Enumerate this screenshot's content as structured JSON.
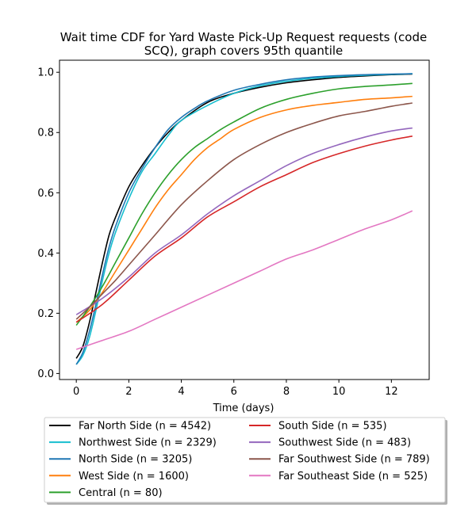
{
  "chart_data": {
    "type": "line",
    "title": [
      "Wait time CDF for Yard Waste Pick-Up Request  requests (code",
      "SCQ), graph covers 95th quantile"
    ],
    "xlabel": "Time (days)",
    "ylabel": "",
    "xlim": [
      -0.64,
      13.44
    ],
    "ylim": [
      -0.02,
      1.04
    ],
    "xticks": [
      0,
      2,
      4,
      6,
      8,
      10,
      12
    ],
    "yticks": [
      0.0,
      0.2,
      0.4,
      0.6,
      0.8,
      1.0
    ],
    "grid": false,
    "legend_placement": "below",
    "series": [
      {
        "name": "Far North Side (n = 4542)",
        "color": "#000000",
        "x": [
          0,
          0.25,
          0.5,
          0.75,
          1,
          1.25,
          1.5,
          2,
          2.5,
          3,
          3.5,
          4,
          5,
          6,
          7,
          8,
          9,
          10,
          11,
          12,
          12.8
        ],
        "y": [
          0.05,
          0.09,
          0.17,
          0.27,
          0.37,
          0.46,
          0.52,
          0.62,
          0.69,
          0.75,
          0.8,
          0.84,
          0.9,
          0.93,
          0.95,
          0.965,
          0.975,
          0.983,
          0.988,
          0.992,
          0.994
        ]
      },
      {
        "name": "Northwest Side (n = 2329)",
        "color": "#17becf",
        "x": [
          0,
          0.25,
          0.5,
          0.75,
          1,
          1.25,
          1.5,
          2,
          2.5,
          3,
          3.5,
          4,
          5,
          6,
          7,
          8,
          9,
          10,
          11,
          12,
          12.8
        ],
        "y": [
          0.03,
          0.06,
          0.12,
          0.21,
          0.31,
          0.4,
          0.47,
          0.58,
          0.67,
          0.73,
          0.79,
          0.84,
          0.89,
          0.93,
          0.955,
          0.97,
          0.98,
          0.986,
          0.99,
          0.993,
          0.995
        ]
      },
      {
        "name": "North Side (n = 3205)",
        "color": "#1f77b4",
        "x": [
          0,
          0.25,
          0.5,
          0.75,
          1,
          1.25,
          1.5,
          2,
          2.5,
          3,
          3.5,
          4,
          4.5,
          5,
          6,
          7,
          8,
          9,
          10,
          11,
          12,
          12.8
        ],
        "y": [
          0.03,
          0.07,
          0.14,
          0.23,
          0.33,
          0.42,
          0.49,
          0.6,
          0.68,
          0.75,
          0.81,
          0.85,
          0.88,
          0.905,
          0.94,
          0.96,
          0.975,
          0.984,
          0.989,
          0.992,
          0.994,
          0.995
        ]
      },
      {
        "name": "West Side (n = 1600)",
        "color": "#ff7f0e",
        "x": [
          0,
          0.5,
          1,
          1.5,
          2,
          2.5,
          3,
          3.5,
          4,
          4.5,
          5,
          5.5,
          6,
          7,
          8,
          9,
          10,
          11,
          12,
          12.8
        ],
        "y": [
          0.17,
          0.21,
          0.27,
          0.34,
          0.41,
          0.48,
          0.55,
          0.61,
          0.66,
          0.71,
          0.75,
          0.78,
          0.81,
          0.85,
          0.875,
          0.89,
          0.9,
          0.91,
          0.915,
          0.92
        ]
      },
      {
        "name": "Central (n = 80)",
        "color": "#2ca02c",
        "x": [
          0,
          0.5,
          1,
          1.5,
          2,
          2.5,
          3,
          3.5,
          4,
          4.5,
          5,
          5.5,
          6,
          7,
          8,
          9,
          10,
          11,
          12,
          12.8
        ],
        "y": [
          0.16,
          0.22,
          0.29,
          0.37,
          0.45,
          0.53,
          0.6,
          0.66,
          0.71,
          0.75,
          0.78,
          0.81,
          0.835,
          0.88,
          0.91,
          0.93,
          0.945,
          0.953,
          0.958,
          0.963
        ]
      },
      {
        "name": "South Side (n = 535)",
        "color": "#d62728",
        "x": [
          0,
          1,
          2,
          3,
          4,
          5,
          6,
          7,
          8,
          9,
          10,
          11,
          12,
          12.8
        ],
        "y": [
          0.17,
          0.23,
          0.31,
          0.39,
          0.45,
          0.52,
          0.57,
          0.62,
          0.66,
          0.7,
          0.73,
          0.755,
          0.775,
          0.788
        ]
      },
      {
        "name": "Southwest Side (n = 483)",
        "color": "#9467bd",
        "x": [
          0,
          1,
          2,
          3,
          4,
          5,
          6,
          7,
          8,
          9,
          10,
          11,
          12,
          12.8
        ],
        "y": [
          0.195,
          0.25,
          0.32,
          0.4,
          0.46,
          0.53,
          0.59,
          0.64,
          0.69,
          0.73,
          0.76,
          0.785,
          0.805,
          0.815
        ]
      },
      {
        "name": "Far Southwest Side (n = 789)",
        "color": "#8c564b",
        "x": [
          0,
          0.5,
          1,
          1.5,
          2,
          2.5,
          3,
          4,
          5,
          6,
          7,
          8,
          9,
          10,
          11,
          12,
          12.8
        ],
        "y": [
          0.18,
          0.22,
          0.265,
          0.31,
          0.36,
          0.41,
          0.46,
          0.56,
          0.64,
          0.71,
          0.76,
          0.8,
          0.83,
          0.855,
          0.87,
          0.887,
          0.898
        ]
      },
      {
        "name": "Far Southeast Side (n = 525)",
        "color": "#e377c2",
        "x": [
          0,
          1,
          2,
          3,
          4,
          5,
          6,
          7,
          8,
          9,
          10,
          11,
          12,
          12.8
        ],
        "y": [
          0.08,
          0.11,
          0.14,
          0.18,
          0.22,
          0.26,
          0.3,
          0.34,
          0.38,
          0.41,
          0.445,
          0.48,
          0.51,
          0.54
        ]
      }
    ]
  }
}
